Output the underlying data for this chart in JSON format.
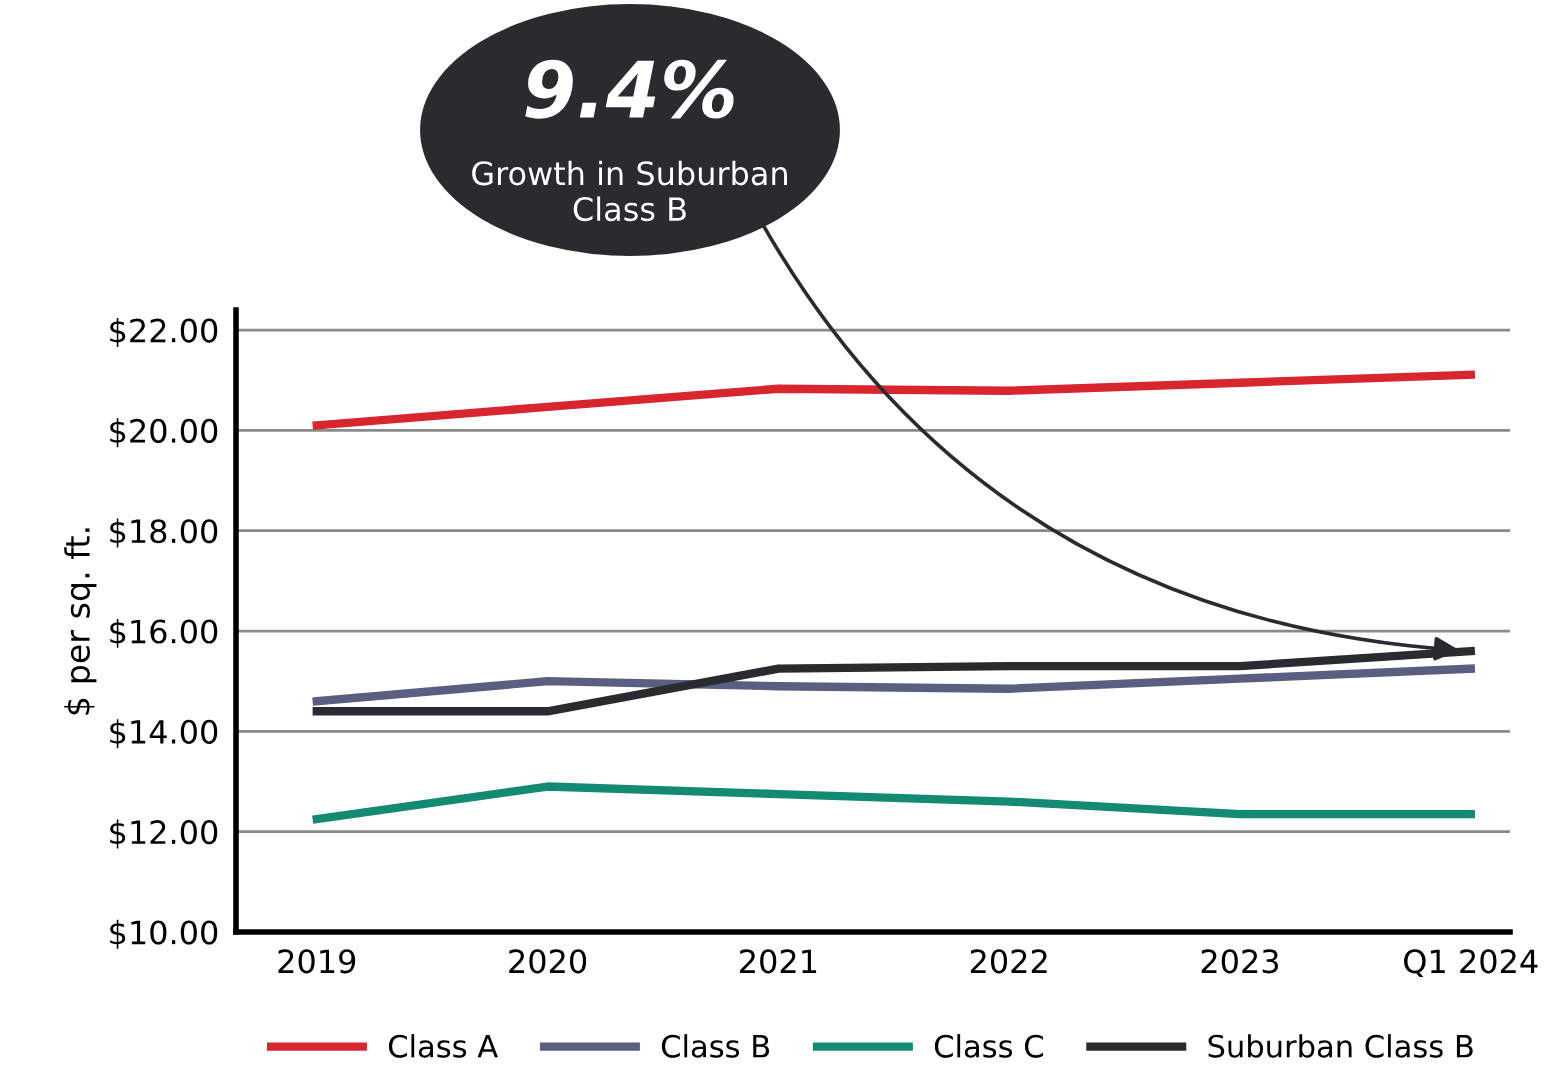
{
  "chart_data": {
    "type": "line",
    "ylabel": "$ per sq. ft.",
    "categories": [
      "2019",
      "2020",
      "2021",
      "2022",
      "2023",
      "Q1 2024"
    ],
    "series": [
      {
        "name": "Class A",
        "color": "#d7262e",
        "values": [
          20.1,
          20.47,
          20.83,
          20.79,
          20.95,
          21.11
        ]
      },
      {
        "name": "Class B",
        "color": "#5a5f82",
        "values": [
          14.6,
          15.0,
          14.9,
          14.85,
          15.05,
          15.25
        ]
      },
      {
        "name": "Class C",
        "color": "#138a72",
        "values": [
          12.25,
          12.9,
          12.75,
          12.6,
          12.35,
          12.35
        ]
      },
      {
        "name": "Suburban Class B",
        "color": "#2a2b2e",
        "values": [
          14.4,
          14.4,
          15.25,
          15.3,
          15.3,
          15.6
        ]
      }
    ],
    "ylim": [
      10,
      22.4
    ],
    "yticks": [
      {
        "value": 10,
        "label": "$10.00"
      },
      {
        "value": 12,
        "label": "$12.00"
      },
      {
        "value": 14,
        "label": "$14.00"
      },
      {
        "value": 16,
        "label": "$16.00"
      },
      {
        "value": 18,
        "label": "$18.00"
      },
      {
        "value": 20,
        "label": "$20.00"
      },
      {
        "value": 22,
        "label": "$22.00"
      }
    ],
    "grid": "y",
    "legend": "bottom",
    "marker": "none",
    "line_style": "solid",
    "annotations": [
      "9.4%",
      "Growth in Suburban\nClass B"
    ]
  }
}
